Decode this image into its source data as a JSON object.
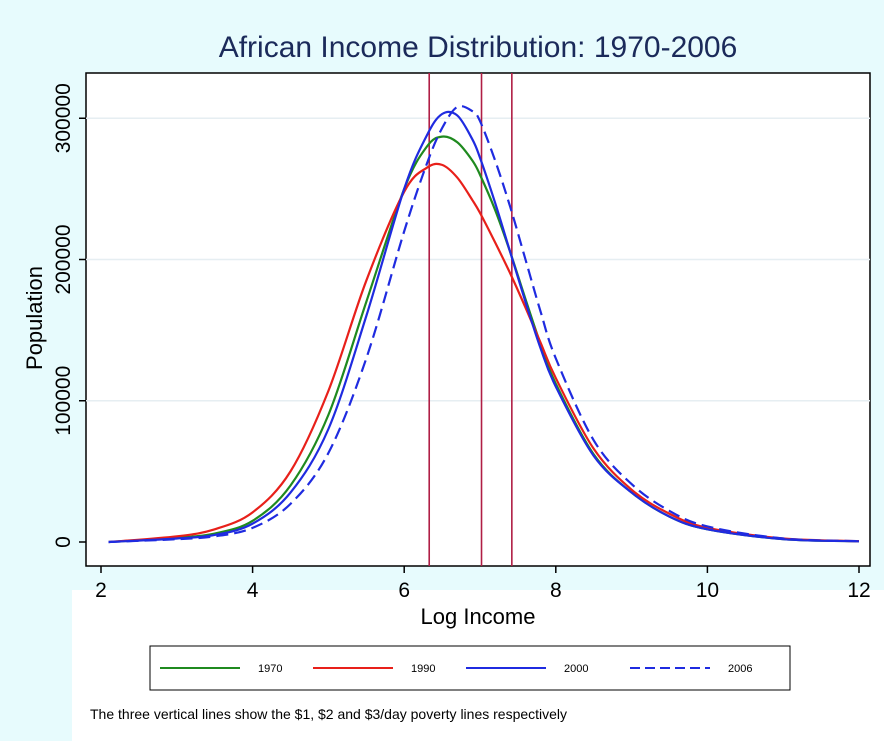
{
  "chart_data": {
    "type": "line",
    "title": "African Income Distribution: 1970-2006",
    "xlabel": "Log Income",
    "ylabel": "Population",
    "xlim": [
      2,
      12
    ],
    "ylim": [
      0,
      320000
    ],
    "x_ticks": [
      2,
      4,
      6,
      8,
      10,
      12
    ],
    "y_ticks": [
      0,
      100000,
      200000,
      300000
    ],
    "grid": "horizontal",
    "legend_position": "bottom",
    "x": [
      2.1,
      3.0,
      3.5,
      4.0,
      4.5,
      5.0,
      5.5,
      6.0,
      6.3,
      6.5,
      6.7,
      6.9,
      7.0,
      7.2,
      7.4,
      7.6,
      7.8,
      8.0,
      8.5,
      9.0,
      9.5,
      10.0,
      11.0,
      12.0
    ],
    "series": [
      {
        "name": "1970",
        "color": "#1f8a1f",
        "dash": "solid",
        "values": [
          0,
          3000,
          6000,
          15000,
          40000,
          90000,
          170000,
          250000,
          280000,
          287000,
          283000,
          270000,
          260000,
          235000,
          205000,
          172000,
          140000,
          112000,
          62000,
          35000,
          18000,
          9000,
          2000,
          500
        ]
      },
      {
        "name": "1990",
        "color": "#e8201a",
        "dash": "solid",
        "values": [
          0,
          4000,
          9000,
          21000,
          50000,
          107000,
          185000,
          248000,
          265000,
          267000,
          258000,
          242000,
          233000,
          212000,
          190000,
          166000,
          141000,
          116000,
          66000,
          37000,
          20000,
          10000,
          2500,
          600
        ]
      },
      {
        "name": "2000",
        "color": "#1f2be0",
        "dash": "solid",
        "values": [
          0,
          2500,
          5000,
          13000,
          35000,
          80000,
          160000,
          250000,
          288000,
          303000,
          302000,
          285000,
          272000,
          240000,
          205000,
          170000,
          137000,
          110000,
          61000,
          35000,
          18000,
          9000,
          2000,
          500
        ]
      },
      {
        "name": "2006",
        "color": "#1f2be0",
        "dash": "dashed",
        "values": [
          0,
          2000,
          4000,
          10000,
          27000,
          63000,
          130000,
          220000,
          268000,
          293000,
          308000,
          305000,
          298000,
          270000,
          237000,
          200000,
          163000,
          130000,
          72000,
          41000,
          22000,
          11000,
          2500,
          600
        ]
      }
    ],
    "vertical_lines": [
      6.33,
      7.02,
      7.42
    ],
    "vertical_line_color": "#b01e45",
    "note": "The three vertical lines show the $1, $2 and $3/day poverty lines respectively"
  }
}
